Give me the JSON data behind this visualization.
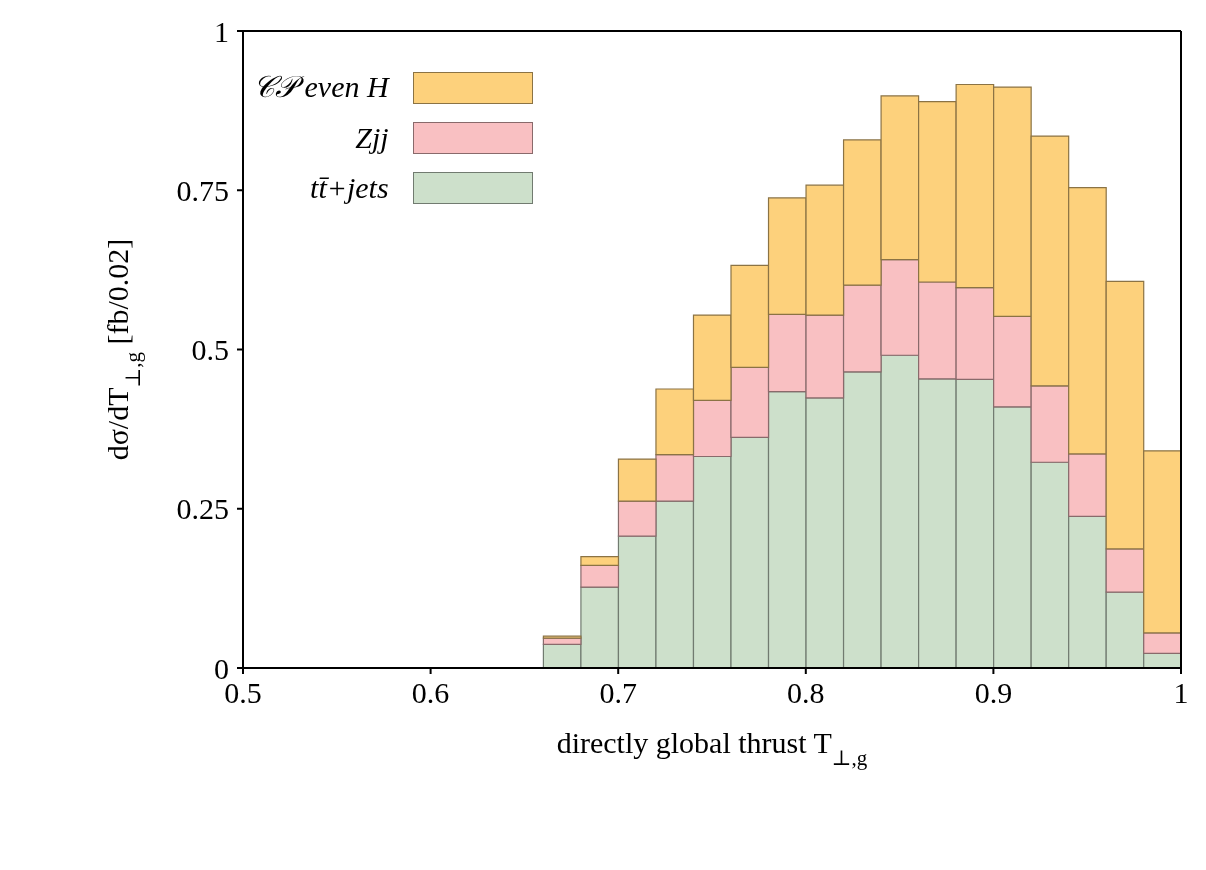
{
  "chart_data": {
    "type": "bar",
    "xlabel": "directly global thrust T$_{⊥,g}$",
    "ylabel": "dσ/dT$_{⊥,g}$ [fb/0.02]",
    "x": [
      0.67,
      0.69,
      0.71,
      0.73,
      0.75,
      0.77,
      0.79,
      0.81,
      0.83,
      0.85,
      0.87,
      0.89,
      0.91,
      0.93,
      0.95,
      0.97,
      0.99
    ],
    "stacked": true,
    "series": [
      {
        "name": "tt̄+jets",
        "color": "#cde0cb",
        "values": [
          0.037,
          0.127,
          0.207,
          0.262,
          0.332,
          0.362,
          0.434,
          0.424,
          0.465,
          0.491,
          0.454,
          0.453,
          0.41,
          0.323,
          0.238,
          0.119,
          0.023
        ]
      },
      {
        "name": "Zjj",
        "color": "#f9c0c2",
        "values": [
          0.01,
          0.034,
          0.055,
          0.073,
          0.088,
          0.11,
          0.121,
          0.13,
          0.136,
          0.15,
          0.152,
          0.144,
          0.142,
          0.12,
          0.098,
          0.068,
          0.032
        ]
      },
      {
        "name": "𝒞𝒫 even H",
        "color": "#fdd17c",
        "values": [
          0.003,
          0.014,
          0.066,
          0.103,
          0.134,
          0.16,
          0.183,
          0.204,
          0.228,
          0.257,
          0.283,
          0.319,
          0.36,
          0.392,
          0.418,
          0.42,
          0.286
        ]
      }
    ],
    "xlim": [
      0.5,
      1
    ],
    "xticks": [
      0.5,
      0.6,
      0.7,
      0.8,
      0.9,
      1
    ],
    "ylim": [
      0,
      1
    ],
    "yticks": [
      0,
      0.25,
      0.5,
      0.75,
      1
    ],
    "grid": false,
    "legend": "top left"
  }
}
